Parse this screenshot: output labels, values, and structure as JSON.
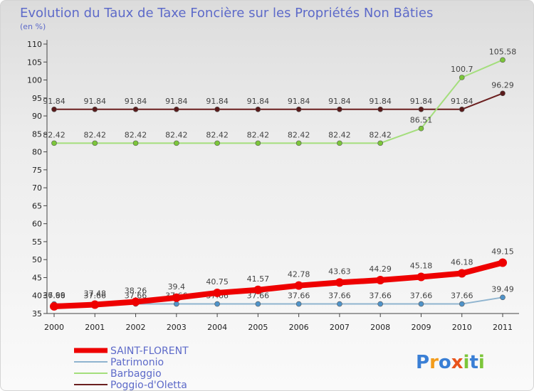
{
  "chart_data": {
    "type": "line",
    "title": "Evolution du Taux de Taxe Foncière sur les Propriétés Non Bâties",
    "subtitle": "(en %)",
    "x": [
      "2000",
      "2001",
      "2002",
      "2003",
      "2004",
      "2005",
      "2006",
      "2007",
      "2008",
      "2009",
      "2010",
      "2011"
    ],
    "ylim": [
      35,
      110
    ],
    "yticks": [
      35,
      40,
      45,
      50,
      55,
      60,
      65,
      70,
      75,
      80,
      85,
      90,
      95,
      100,
      105,
      110
    ],
    "grid": false,
    "legend_position": "bottom-left",
    "series": [
      {
        "name": "Poggio-d'Oletta",
        "color": "#6b1f1f",
        "point_color": "#5a1a1a",
        "values": [
          91.84,
          91.84,
          91.84,
          91.84,
          91.84,
          91.84,
          91.84,
          91.84,
          91.84,
          91.84,
          91.84,
          96.29
        ],
        "labels": [
          "91.84",
          "91.84",
          "91.84",
          "91.84",
          "91.84",
          "91.84",
          "91.84",
          "91.84",
          "91.84",
          "91.84",
          "91.84",
          "96.29"
        ]
      },
      {
        "name": "Barbaggio",
        "color": "#a4de7c",
        "point_color": "#7cc63a",
        "values": [
          82.42,
          82.42,
          82.42,
          82.42,
          82.42,
          82.42,
          82.42,
          82.42,
          82.42,
          86.51,
          100.7,
          105.58
        ],
        "labels": [
          "82.42",
          "82.42",
          "82.42",
          "82.42",
          "82.42",
          "82.42",
          "82.42",
          "82.42",
          "82.42",
          "86.51",
          "100.7",
          "105.58"
        ]
      },
      {
        "name": "Patrimonio",
        "color": "#8fb4cf",
        "point_color": "#4f93c9",
        "values": [
          37.66,
          37.66,
          37.66,
          37.66,
          37.66,
          37.66,
          37.66,
          37.66,
          37.66,
          37.66,
          37.66,
          39.49
        ],
        "labels": [
          "37.66",
          "37.66",
          "37.66",
          "37.66",
          "37.66",
          "37.66",
          "37.66",
          "37.66",
          "37.66",
          "37.66",
          "37.66",
          "39.49"
        ]
      },
      {
        "name": "SAINT-FLORENT",
        "color": "#ee0000",
        "point_color": "#ee0000",
        "values": [
          36.99,
          37.48,
          38.26,
          39.4,
          40.75,
          41.57,
          42.78,
          43.63,
          44.29,
          45.18,
          46.18,
          49.15
        ],
        "labels": [
          "36.99",
          "37.48",
          "38.26",
          "39.4",
          "40.75",
          "41.57",
          "42.78",
          "43.63",
          "44.29",
          "45.18",
          "46.18",
          "49.15"
        ]
      }
    ]
  },
  "legend": [
    {
      "label": "SAINT-FLORENT",
      "color": "#ee0000"
    },
    {
      "label": "Patrimonio",
      "color": "#8fb4cf"
    },
    {
      "label": "Barbaggio",
      "color": "#a4de7c"
    },
    {
      "label": "Poggio-d'Oletta",
      "color": "#6b1f1f"
    }
  ],
  "logo": {
    "text": "Proxiti",
    "letters": [
      "P",
      "r",
      "o",
      "x",
      "i",
      "t",
      "i"
    ],
    "colors": [
      "#3a7fd5",
      "#f39c1c",
      "#3a7fd5",
      "#e8541c",
      "#7cc63a",
      "#3a7fd5",
      "#7cc63a"
    ]
  }
}
